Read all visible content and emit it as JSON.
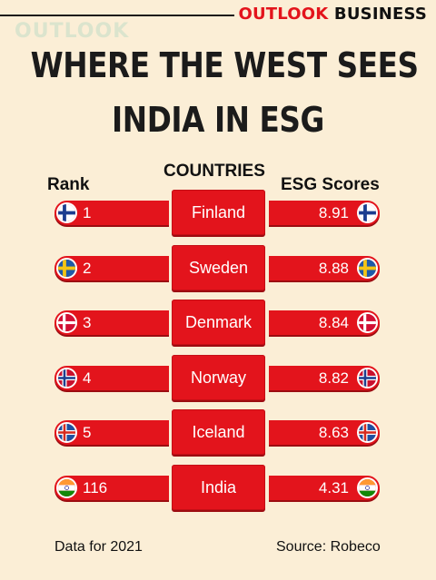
{
  "header": {
    "brand_part1": "OUTLOOK",
    "brand_part2": "BUSINESS",
    "watermark": "OUTLOOK"
  },
  "title": {
    "line1": "WHERE THE WEST SEES",
    "line2": "INDIA IN ESG"
  },
  "columns": {
    "rank": "Rank",
    "countries": "COUNTRIES",
    "scores": "ESG Scores"
  },
  "chart_data": {
    "type": "table",
    "title": "WHERE THE WEST SEES INDIA IN ESG",
    "columns": [
      "Rank",
      "COUNTRIES",
      "ESG Scores"
    ],
    "rows": [
      {
        "rank": "1",
        "country": "Finland",
        "score": "8.91",
        "flag": "finland-flag"
      },
      {
        "rank": "2",
        "country": "Sweden",
        "score": "8.88",
        "flag": "sweden-flag"
      },
      {
        "rank": "3",
        "country": "Denmark",
        "score": "8.84",
        "flag": "denmark-flag"
      },
      {
        "rank": "4",
        "country": "Norway",
        "score": "8.82",
        "flag": "norway-flag"
      },
      {
        "rank": "5",
        "country": "Iceland",
        "score": "8.63",
        "flag": "iceland-flag"
      },
      {
        "rank": "116",
        "country": "India",
        "score": "4.31",
        "flag": "india-flag"
      }
    ]
  },
  "colors": {
    "background": "#fbeed6",
    "accent": "#e3141c"
  },
  "footer": {
    "note": "Data for 2021",
    "source": "Source: Robeco"
  }
}
